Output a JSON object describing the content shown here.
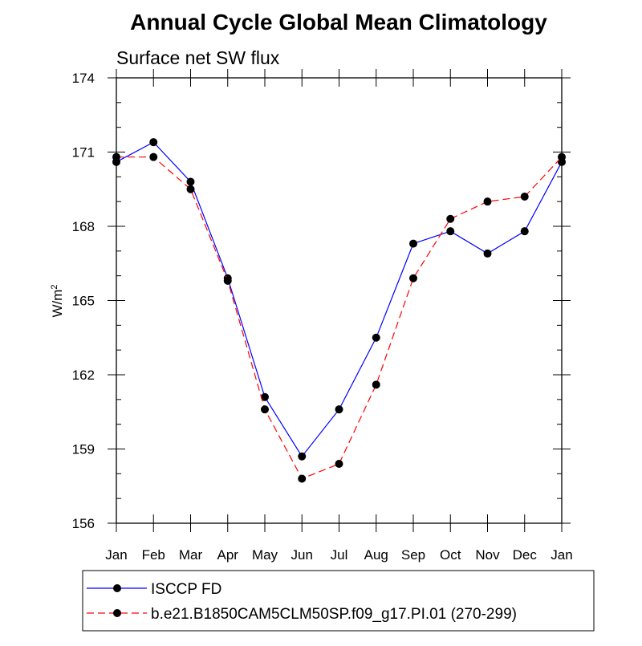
{
  "chart_data": {
    "type": "line",
    "title": "Annual Cycle Global Mean Climatology",
    "subtitle": "Surface net SW flux",
    "ylabel": "W/m",
    "ylabel_superscript": "2",
    "ylim": [
      156,
      174
    ],
    "yticks": [
      156,
      159,
      162,
      165,
      168,
      171,
      174
    ],
    "categories": [
      "Jan",
      "Feb",
      "Mar",
      "Apr",
      "May",
      "Jun",
      "Jul",
      "Aug",
      "Sep",
      "Oct",
      "Nov",
      "Dec",
      "Jan"
    ],
    "grid": false,
    "legend_position": "bottom",
    "series": [
      {
        "name": "ISCCP FD",
        "color": "#0000ff",
        "dash": "solid",
        "values": [
          170.6,
          171.4,
          169.8,
          165.9,
          161.1,
          158.7,
          160.6,
          163.5,
          167.3,
          167.8,
          166.9,
          167.8,
          170.6
        ]
      },
      {
        "name": "b.e21.B1850CAM5CLM50SP.f09_g17.PI.01 (270-299)",
        "color": "#ff0000",
        "dash": "dashed",
        "values": [
          170.8,
          170.8,
          169.5,
          165.8,
          160.6,
          157.8,
          158.4,
          161.6,
          165.9,
          168.3,
          169.0,
          169.2,
          170.8
        ]
      }
    ]
  }
}
